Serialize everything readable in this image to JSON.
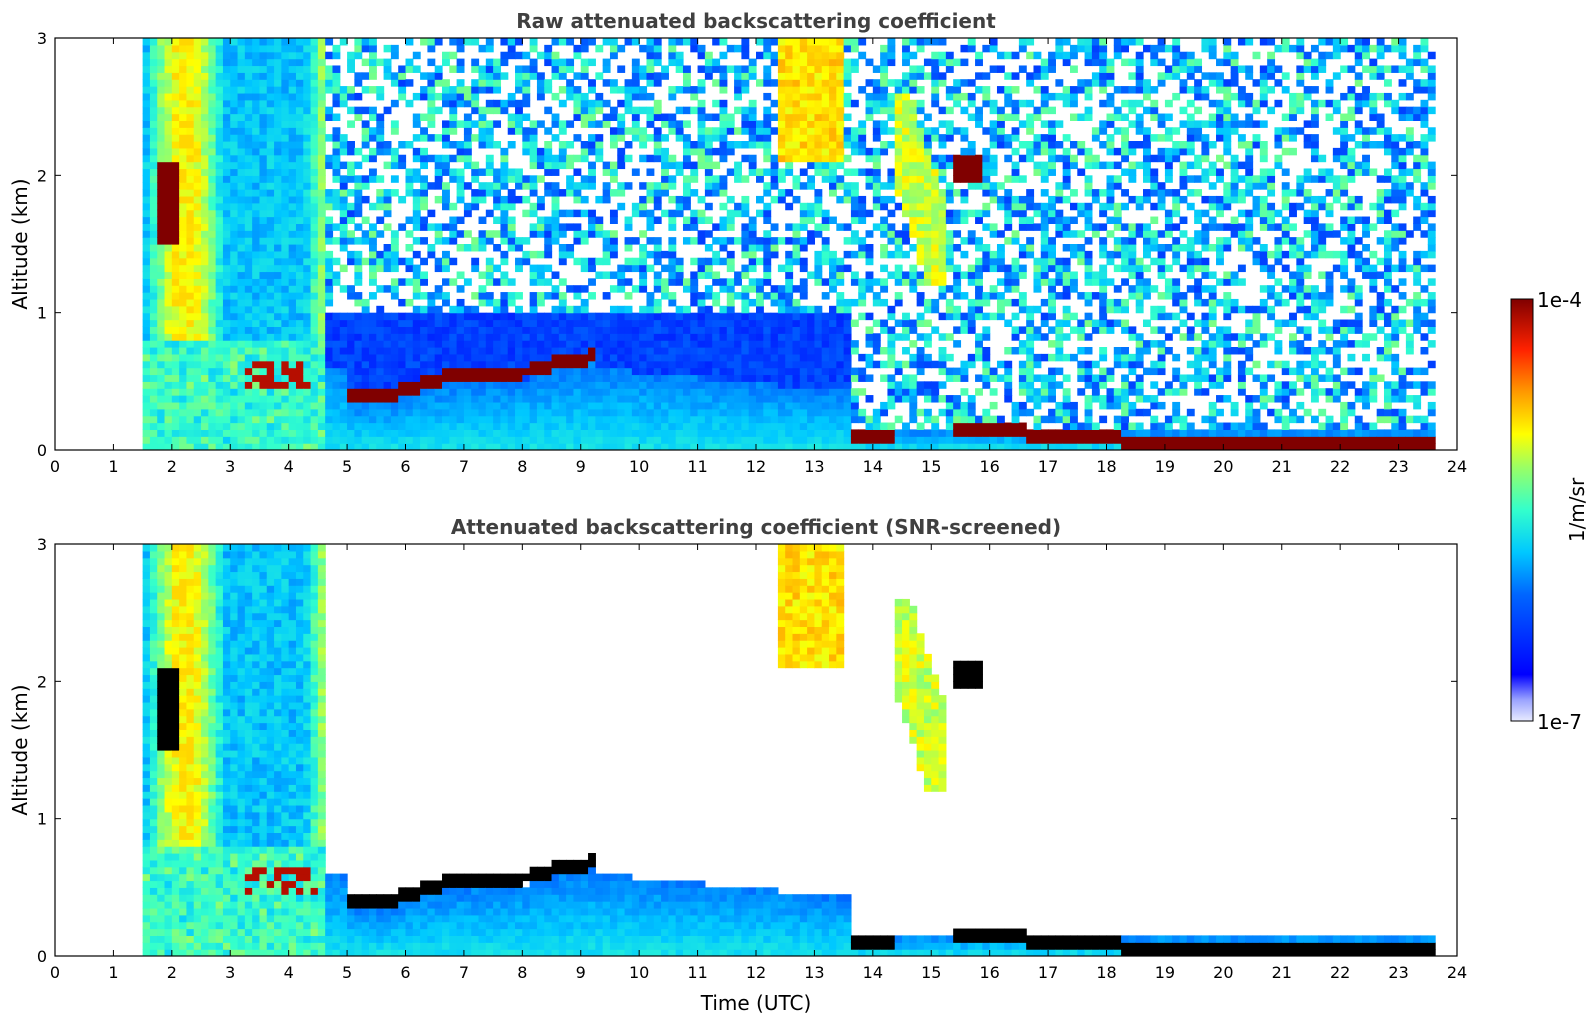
{
  "chart_data": [
    {
      "type": "heatmap",
      "title": "Raw attenuated backscattering coefficient",
      "xlabel": "",
      "ylabel": "Altitude (km)",
      "xlim": [
        0,
        24
      ],
      "ylim": [
        0,
        3
      ],
      "x_ticks": [
        "0",
        "1",
        "2",
        "3",
        "4",
        "5",
        "6",
        "7",
        "8",
        "9",
        "10",
        "11",
        "12",
        "13",
        "14",
        "15",
        "16",
        "17",
        "18",
        "19",
        "20",
        "21",
        "22",
        "23",
        "24"
      ],
      "y_ticks": [
        "0",
        "1",
        "2",
        "3"
      ],
      "data_time_range": [
        1.55,
        23.6
      ],
      "features": [
        {
          "name": "surface layer",
          "t_start": 18.2,
          "t_end": 23.6,
          "z_bottom": 0.0,
          "z_top": 0.12,
          "level": 1.0
        },
        {
          "name": "low cloud",
          "t_start": 5.0,
          "t_end": 9.2,
          "z_values": [
            0.42,
            0.38,
            0.45,
            0.52,
            0.56,
            0.55,
            0.58,
            0.65,
            0.68
          ],
          "level": 1.0
        },
        {
          "name": "cirrus cloud",
          "t_start": 12.6,
          "t_end": 13.5,
          "z_bottom": 2.1,
          "z_top": 3.0,
          "level": 0.72
        },
        {
          "name": "elevated cloud",
          "t_start": 15.4,
          "t_end": 15.9,
          "z_bottom": 1.95,
          "z_top": 2.15,
          "level": 1.0
        }
      ]
    },
    {
      "type": "heatmap",
      "title": "Attenuated backscattering coefficient (SNR-screened)",
      "xlabel": "Time (UTC)",
      "ylabel": "Altitude (km)",
      "xlim": [
        0,
        24
      ],
      "ylim": [
        0,
        3
      ],
      "x_ticks": [
        "0",
        "1",
        "2",
        "3",
        "4",
        "5",
        "6",
        "7",
        "8",
        "9",
        "10",
        "11",
        "12",
        "13",
        "14",
        "15",
        "16",
        "17",
        "18",
        "19",
        "20",
        "21",
        "22",
        "23",
        "24"
      ],
      "y_ticks": [
        "0",
        "1",
        "2",
        "3"
      ],
      "data_time_range": [
        1.55,
        23.6
      ],
      "screened": true
    }
  ],
  "colorbar": {
    "label": "1/m/sr",
    "max_label": "1e-4",
    "min_label": "1e-7",
    "colormap": "jet",
    "log_scale": true,
    "max_value": 0.0001,
    "min_value": 1e-07,
    "saturated_color": "#000000"
  }
}
